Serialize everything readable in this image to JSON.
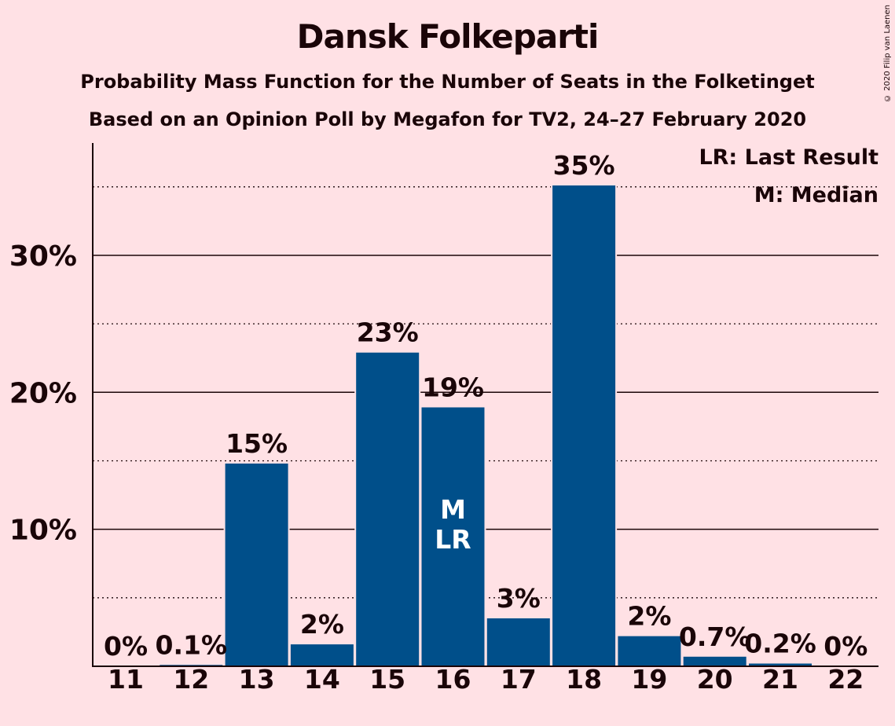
{
  "title": "Dansk Folkeparti",
  "subtitle1": "Probability Mass Function for the Number of Seats in the Folketinget",
  "subtitle2": "Based on an Opinion Poll by Megafon for TV2, 24–27 February 2020",
  "copyright": "© 2020 Filip van Laenen",
  "legend": {
    "last_result": "LR: Last Result",
    "median": "M: Median"
  },
  "colors": {
    "background": "#ffe1e5",
    "bar": "#004f8a",
    "text": "#1a0508"
  },
  "chart_data": {
    "type": "bar",
    "categories": [
      "11",
      "12",
      "13",
      "14",
      "15",
      "16",
      "17",
      "18",
      "19",
      "20",
      "21",
      "22"
    ],
    "values": [
      0,
      0.1,
      14.8,
      1.6,
      22.9,
      18.9,
      3.5,
      35.1,
      2.2,
      0.7,
      0.2,
      0
    ],
    "data_labels": [
      "0%",
      "0.1%",
      "15%",
      "2%",
      "23%",
      "19%",
      "3%",
      "35%",
      "2%",
      "0.7%",
      "0.2%",
      "0%"
    ],
    "y_ticks": [
      {
        "value": 10,
        "label": "10%"
      },
      {
        "value": 20,
        "label": "20%"
      },
      {
        "value": 30,
        "label": "30%"
      }
    ],
    "minor_gridlines": [
      5,
      15,
      25,
      35
    ],
    "ylim": [
      0,
      38.2
    ],
    "median_category": "16",
    "last_result_category": "16",
    "median_marker": "M",
    "last_result_marker": "LR",
    "legend_position": "top-right"
  }
}
